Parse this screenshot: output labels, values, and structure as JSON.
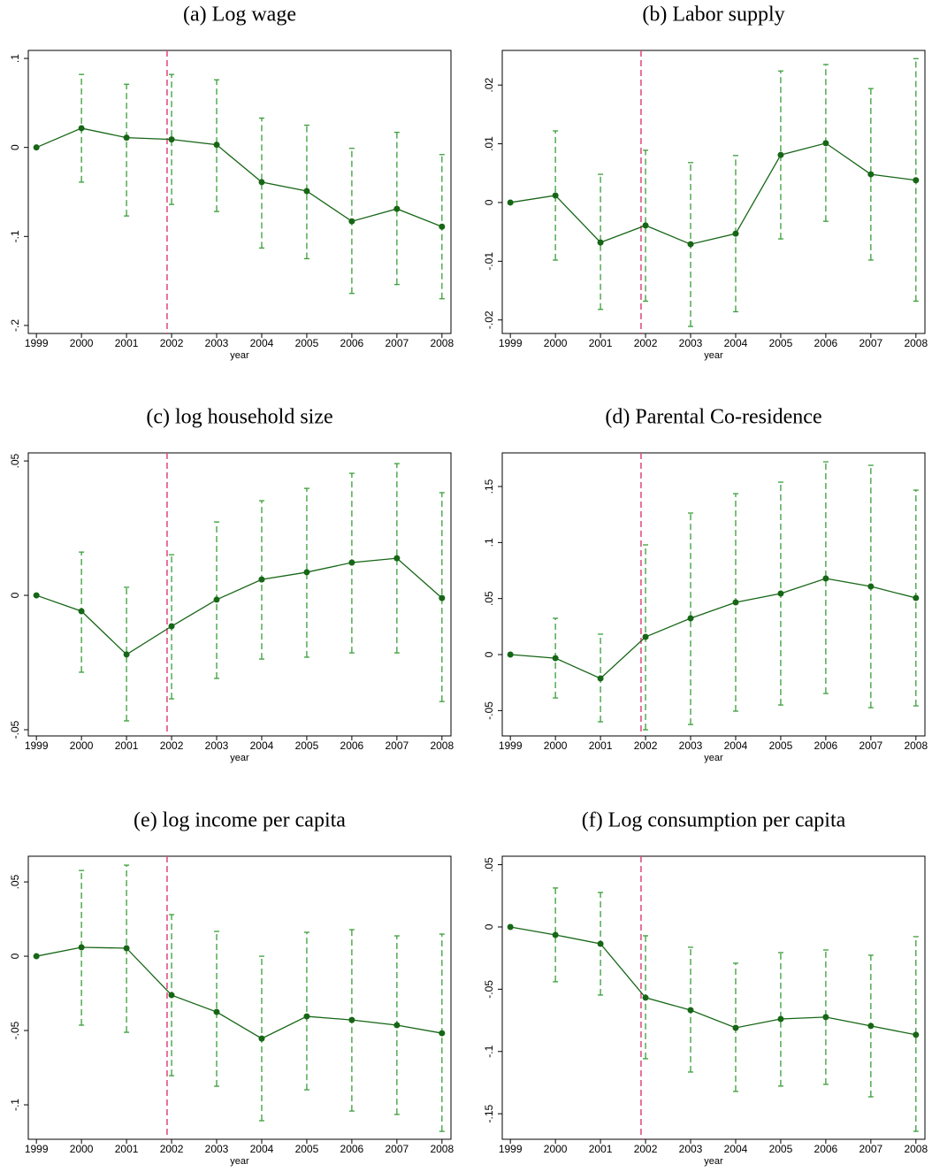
{
  "chart_data": [
    {
      "type": "errorbar-line",
      "title": "(a) Log wage",
      "xlabel": "year",
      "x": [
        1999,
        2000,
        2001,
        2002,
        2003,
        2004,
        2005,
        2006,
        2007,
        2008
      ],
      "values": [
        0,
        0.0216,
        0.011,
        0.009,
        0.003,
        -0.039,
        -0.049,
        -0.083,
        -0.069,
        -0.089
      ],
      "ci_lower": [
        null,
        -0.039,
        -0.077,
        -0.064,
        -0.072,
        -0.113,
        -0.125,
        -0.164,
        -0.154,
        -0.17
      ],
      "ci_upper": [
        null,
        0.082,
        0.071,
        0.082,
        0.076,
        0.033,
        0.025,
        -0.001,
        0.017,
        -0.008
      ],
      "xlim": [
        1998.82,
        2008.2
      ],
      "xticks": [
        1999,
        2000,
        2001,
        2002,
        2003,
        2004,
        2005,
        2006,
        2007,
        2008
      ],
      "ylim": [
        -0.209,
        0.109
      ],
      "yticks": [
        {
          "value": -0.2,
          "label": "-.2"
        },
        {
          "value": -0.1,
          "label": "-.1"
        },
        0,
        {
          "value": 0.1,
          "label": ".1"
        }
      ],
      "vline": 2001.9,
      "color": "#166616",
      "ci_color": "#3a9e3a",
      "vline_color": "#e0457b"
    },
    {
      "type": "errorbar-line",
      "title": "(b) Labor supply",
      "xlabel": "year",
      "x": [
        1999,
        2000,
        2001,
        2002,
        2003,
        2004,
        2005,
        2006,
        2007,
        2008
      ],
      "values": [
        0,
        0.0012,
        -0.0068,
        -0.0039,
        -0.0071,
        -0.0053,
        0.0081,
        0.0101,
        0.0048,
        0.0038
      ],
      "ci_lower": [
        null,
        -0.0098,
        -0.0182,
        -0.0168,
        -0.0211,
        -0.0186,
        -0.0062,
        -0.0032,
        -0.0098,
        -0.0168
      ],
      "ci_upper": [
        null,
        0.0122,
        0.0048,
        0.0089,
        0.0068,
        0.008,
        0.0224,
        0.0235,
        0.0194,
        0.0245
      ],
      "xlim": [
        1998.82,
        2008.2
      ],
      "xticks": [
        1999,
        2000,
        2001,
        2002,
        2003,
        2004,
        2005,
        2006,
        2007,
        2008
      ],
      "ylim": [
        -0.0223,
        0.0259
      ],
      "yticks": [
        {
          "value": -0.02,
          "label": "-.02"
        },
        {
          "value": -0.01,
          "label": "-.01"
        },
        0,
        {
          "value": 0.01,
          "label": ".01"
        },
        {
          "value": 0.02,
          "label": ".02"
        }
      ],
      "vline": 2001.9,
      "color": "#166616",
      "ci_color": "#3a9e3a",
      "vline_color": "#e0457b"
    },
    {
      "type": "errorbar-line",
      "title": "(c) log household size",
      "xlabel": "year",
      "x": [
        1999,
        2000,
        2001,
        2002,
        2003,
        2004,
        2005,
        2006,
        2007,
        2008
      ],
      "values": [
        0,
        -0.0059,
        -0.022,
        -0.0115,
        -0.0016,
        0.0059,
        0.0086,
        0.0122,
        0.0138,
        -0.001
      ],
      "ci_lower": [
        null,
        -0.0286,
        -0.0467,
        -0.0385,
        -0.0309,
        -0.0237,
        -0.023,
        -0.0214,
        -0.0214,
        -0.0395
      ],
      "ci_upper": [
        null,
        0.0161,
        0.003,
        0.0151,
        0.0273,
        0.0352,
        0.0398,
        0.0454,
        0.049,
        0.0382
      ],
      "xlim": [
        1998.82,
        2008.2
      ],
      "xticks": [
        1999,
        2000,
        2001,
        2002,
        2003,
        2004,
        2005,
        2006,
        2007,
        2008
      ],
      "ylim": [
        -0.0523,
        0.053
      ],
      "yticks": [
        {
          "value": -0.05,
          "label": "-.05"
        },
        0,
        {
          "value": 0.05,
          "label": ".05"
        }
      ],
      "vline": 2001.9,
      "color": "#166616",
      "ci_color": "#3a9e3a",
      "vline_color": "#e0457b"
    },
    {
      "type": "errorbar-line",
      "title": "(d) Parental Co-residence",
      "xlabel": "year",
      "x": [
        1999,
        2000,
        2001,
        2002,
        2003,
        2004,
        2005,
        2006,
        2007,
        2008
      ],
      "values": [
        0,
        -0.0032,
        -0.0213,
        0.0158,
        0.0324,
        0.0466,
        0.0545,
        0.0679,
        0.0608,
        0.0505
      ],
      "ci_lower": [
        null,
        -0.0387,
        -0.06,
        -0.0671,
        -0.0624,
        -0.0505,
        -0.045,
        -0.0347,
        -0.0474,
        -0.0458
      ],
      "ci_upper": [
        null,
        0.0324,
        0.0182,
        0.0979,
        0.1263,
        0.1436,
        0.1539,
        0.172,
        0.1689,
        0.1468
      ],
      "xlim": [
        1998.82,
        2008.2
      ],
      "xticks": [
        1999,
        2000,
        2001,
        2002,
        2003,
        2004,
        2005,
        2006,
        2007,
        2008
      ],
      "ylim": [
        -0.0726,
        0.18
      ],
      "yticks": [
        {
          "value": -0.05,
          "label": "-.05"
        },
        0,
        {
          "value": 0.05,
          "label": ".05"
        },
        {
          "value": 0.1,
          "label": ".1"
        },
        {
          "value": 0.15,
          "label": ".15"
        }
      ],
      "vline": 2001.9,
      "color": "#166616",
      "ci_color": "#3a9e3a",
      "vline_color": "#e0457b"
    },
    {
      "type": "errorbar-line",
      "title": "(e) log income per capita",
      "xlabel": "year",
      "x": [
        1999,
        2000,
        2001,
        2002,
        2003,
        2004,
        2005,
        2006,
        2007,
        2008
      ],
      "values": [
        0,
        0.006,
        0.0054,
        -0.0262,
        -0.0375,
        -0.0554,
        -0.0405,
        -0.0429,
        -0.0464,
        -0.0518
      ],
      "ci_lower": [
        null,
        -0.0464,
        -0.0512,
        -0.0804,
        -0.0875,
        -0.1107,
        -0.0899,
        -0.1042,
        -0.1065,
        -0.1179
      ],
      "ci_upper": [
        null,
        0.0577,
        0.0613,
        0.028,
        0.0167,
        0,
        0.0161,
        0.0179,
        0.0137,
        0.0149
      ],
      "xlim": [
        1998.82,
        2008.2
      ],
      "xticks": [
        1999,
        2000,
        2001,
        2002,
        2003,
        2004,
        2005,
        2006,
        2007,
        2008
      ],
      "ylim": [
        -0.1232,
        0.0673
      ],
      "yticks": [
        {
          "value": -0.1,
          "label": "-.1"
        },
        {
          "value": -0.05,
          "label": "-.05"
        },
        0,
        {
          "value": 0.05,
          "label": ".05"
        }
      ],
      "vline": 2001.9,
      "color": "#166616",
      "ci_color": "#3a9e3a",
      "vline_color": "#e0457b"
    },
    {
      "type": "errorbar-line",
      "title": "(f) Log consumption per capita",
      "xlabel": "year",
      "x": [
        1999,
        2000,
        2001,
        2002,
        2003,
        2004,
        2005,
        2006,
        2007,
        2008
      ],
      "values": [
        0,
        -0.0064,
        -0.0135,
        -0.0568,
        -0.0668,
        -0.081,
        -0.0739,
        -0.0724,
        -0.0795,
        -0.0866
      ],
      "ci_lower": [
        null,
        -0.044,
        -0.0547,
        -0.1058,
        -0.1165,
        -0.1321,
        -0.1278,
        -0.1264,
        -0.1364,
        -0.1641
      ],
      "ci_upper": [
        null,
        0.0313,
        0.0277,
        -0.0071,
        -0.0163,
        -0.0291,
        -0.0206,
        -0.0185,
        -0.0227,
        -0.0078
      ],
      "xlim": [
        1998.82,
        2008.2
      ],
      "xticks": [
        1999,
        2000,
        2001,
        2002,
        2003,
        2004,
        2005,
        2006,
        2007,
        2008
      ],
      "ylim": [
        -0.1705,
        0.0568
      ],
      "yticks": [
        {
          "value": -0.15,
          "label": "-.15"
        },
        {
          "value": -0.1,
          "label": "-.1"
        },
        {
          "value": -0.05,
          "label": "-.05"
        },
        0,
        {
          "value": 0.05,
          "label": ".05"
        }
      ],
      "vline": 2001.9,
      "color": "#166616",
      "ci_color": "#3a9e3a",
      "vline_color": "#e0457b"
    }
  ]
}
